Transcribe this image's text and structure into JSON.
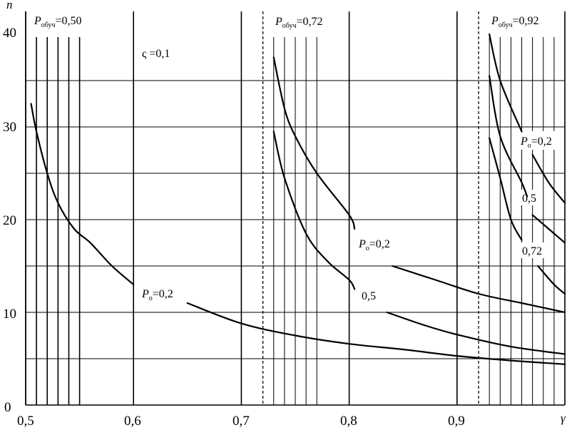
{
  "chart_data": {
    "type": "line",
    "xlabel": "γ",
    "ylabel": "n",
    "xlim": [
      0.5,
      1.0
    ],
    "ylim": [
      0,
      42
    ],
    "grid": true,
    "x_ticks": [
      "0,5",
      "0,6",
      "0,7",
      "0,8",
      "0,9"
    ],
    "y_ticks": [
      "0",
      "10",
      "20",
      "30",
      "40"
    ],
    "x_tick_values": [
      0.5,
      0.6,
      0.7,
      0.8,
      0.9
    ],
    "y_tick_values": [
      0,
      10,
      20,
      30,
      40
    ],
    "x_grid_values": [
      0.5,
      0.6,
      0.7,
      0.8,
      0.9,
      1.0,
      0.51,
      0.52,
      0.53,
      0.54,
      0.55,
      0.73,
      0.74,
      0.75,
      0.76,
      0.77,
      0.93,
      0.94,
      0.95,
      0.96,
      0.97,
      0.98,
      0.99
    ],
    "y_grid_values": [
      5,
      10,
      15,
      20,
      25,
      30,
      35
    ],
    "vertical_markers": [
      0.72,
      0.92
    ],
    "annotations": {
      "p1": "=0,50",
      "p2": "=0,72",
      "p3": "=0,92",
      "p_sym": "P",
      "p_sub_train": "обуч",
      "p_sub_o": "о",
      "zeta": "ς =0,1",
      "pa1": "=0,2",
      "pa2": "=0,2",
      "lbl05a": "0,5",
      "pa3": "=0,2",
      "lbl05b": "0,5",
      "lbl072": "0,72"
    },
    "series": [
      {
        "values": [
          [
            0.505,
            32.5
          ],
          [
            0.51,
            29.5
          ],
          [
            0.52,
            25
          ],
          [
            0.53,
            21.8
          ],
          [
            0.545,
            19
          ],
          [
            0.56,
            17.5
          ],
          [
            0.58,
            15
          ],
          [
            0.6,
            13
          ]
        ]
      },
      {
        "values": [
          [
            0.65,
            11
          ],
          [
            0.7,
            8.8
          ],
          [
            0.75,
            7.5
          ],
          [
            0.8,
            6.6
          ],
          [
            0.85,
            6
          ],
          [
            0.9,
            5.3
          ],
          [
            0.95,
            4.8
          ],
          [
            1.0,
            4.4
          ]
        ]
      },
      {
        "values": [
          [
            0.73,
            37.5
          ],
          [
            0.74,
            32
          ],
          [
            0.75,
            29
          ],
          [
            0.77,
            25
          ],
          [
            0.8,
            20.5
          ],
          [
            0.805,
            19
          ]
        ]
      },
      {
        "values": [
          [
            0.84,
            15
          ],
          [
            0.88,
            13.5
          ],
          [
            0.92,
            12
          ],
          [
            0.96,
            11
          ],
          [
            1.0,
            10
          ]
        ]
      },
      {
        "values": [
          [
            0.73,
            29.5
          ],
          [
            0.74,
            24.5
          ],
          [
            0.76,
            18.5
          ],
          [
            0.78,
            15.5
          ],
          [
            0.8,
            13.5
          ],
          [
            0.805,
            12.5
          ]
        ]
      },
      {
        "values": [
          [
            0.835,
            10
          ],
          [
            0.87,
            8.6
          ],
          [
            0.9,
            7.6
          ],
          [
            0.95,
            6.3
          ],
          [
            1.0,
            5.5
          ]
        ]
      },
      {
        "values": [
          [
            0.93,
            40
          ],
          [
            0.94,
            35
          ],
          [
            0.96,
            29.5
          ]
        ]
      },
      {
        "values": [
          [
            0.97,
            27
          ],
          [
            0.985,
            24
          ],
          [
            1.0,
            21.8
          ]
        ]
      },
      {
        "values": [
          [
            0.93,
            35.5
          ],
          [
            0.94,
            29
          ],
          [
            0.96,
            24
          ],
          [
            0.965,
            22.5
          ]
        ]
      },
      {
        "values": [
          [
            0.97,
            20.5
          ],
          [
            0.98,
            19.5
          ],
          [
            0.99,
            18.5
          ],
          [
            1.0,
            17.5
          ]
        ]
      },
      {
        "values": [
          [
            0.93,
            28.8
          ],
          [
            0.94,
            24.5
          ],
          [
            0.95,
            20
          ],
          [
            0.96,
            17.8
          ]
        ]
      },
      {
        "values": [
          [
            0.975,
            15
          ],
          [
            0.99,
            13
          ],
          [
            1.0,
            12
          ]
        ]
      }
    ]
  }
}
